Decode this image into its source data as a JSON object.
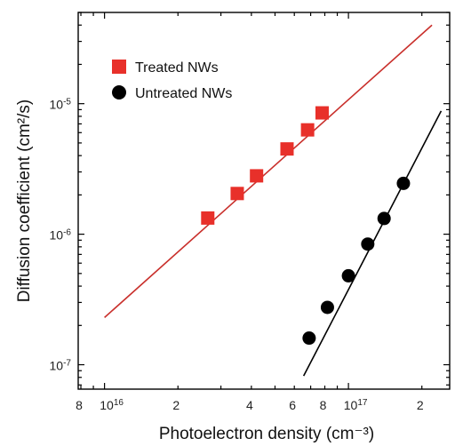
{
  "chart_data": {
    "type": "scatter",
    "xlabel": "Photoelectron density (cm⁻³)",
    "ylabel": "Diffusion coefficient (cm²/s)",
    "x_scale": "log",
    "y_scale": "log",
    "xlim": [
      7800000000000000.0,
      2.6e+17
    ],
    "ylim": [
      6.5e-08,
      5e-05
    ],
    "grid": false,
    "legend_position": "top-left",
    "x_ticks": [
      {
        "value": 8000000000000000.0,
        "label": "8"
      },
      {
        "value": 1e+16,
        "label": "10",
        "exp": "16"
      },
      {
        "value": 2e+16,
        "label": "2"
      },
      {
        "value": 4e+16,
        "label": "4"
      },
      {
        "value": 6e+16,
        "label": "6"
      },
      {
        "value": 8e+16,
        "label": "8"
      },
      {
        "value": 1e+17,
        "label": "10",
        "exp": "17"
      },
      {
        "value": 2e+17,
        "label": "2"
      }
    ],
    "y_ticks": [
      {
        "value": 1e-07,
        "label": "10",
        "exp": "-7"
      },
      {
        "value": 1e-06,
        "label": "10",
        "exp": "-6"
      },
      {
        "value": 1e-05,
        "label": "10",
        "exp": "-5"
      }
    ],
    "series": [
      {
        "name": "Treated NWs",
        "marker": "square",
        "color": "#e8302a",
        "line_color": "#c9302c",
        "x": [
          2.65e+16,
          3.5e+16,
          4.2e+16,
          5.6e+16,
          6.8e+16,
          7.8e+16
        ],
        "y": [
          1.33e-06,
          2.05e-06,
          2.8e-06,
          4.5e-06,
          6.3e-06,
          8.5e-06
        ],
        "fit": {
          "x": [
            1e+16,
            2.2e+17
          ],
          "y": [
            2.3e-07,
            4e-05
          ]
        }
      },
      {
        "name": "Untreated NWs",
        "marker": "circle",
        "color": "#000000",
        "line_color": "#000000",
        "x": [
          6.9e+16,
          8.2e+16,
          1e+17,
          1.2e+17,
          1.4e+17,
          1.68e+17
        ],
        "y": [
          1.6e-07,
          2.75e-07,
          4.8e-07,
          8.4e-07,
          1.32e-06,
          2.45e-06
        ],
        "fit": {
          "x": [
            6.55e+16,
            2.4e+17
          ],
          "y": [
            8.2e-08,
            8.8e-06
          ]
        }
      }
    ]
  }
}
